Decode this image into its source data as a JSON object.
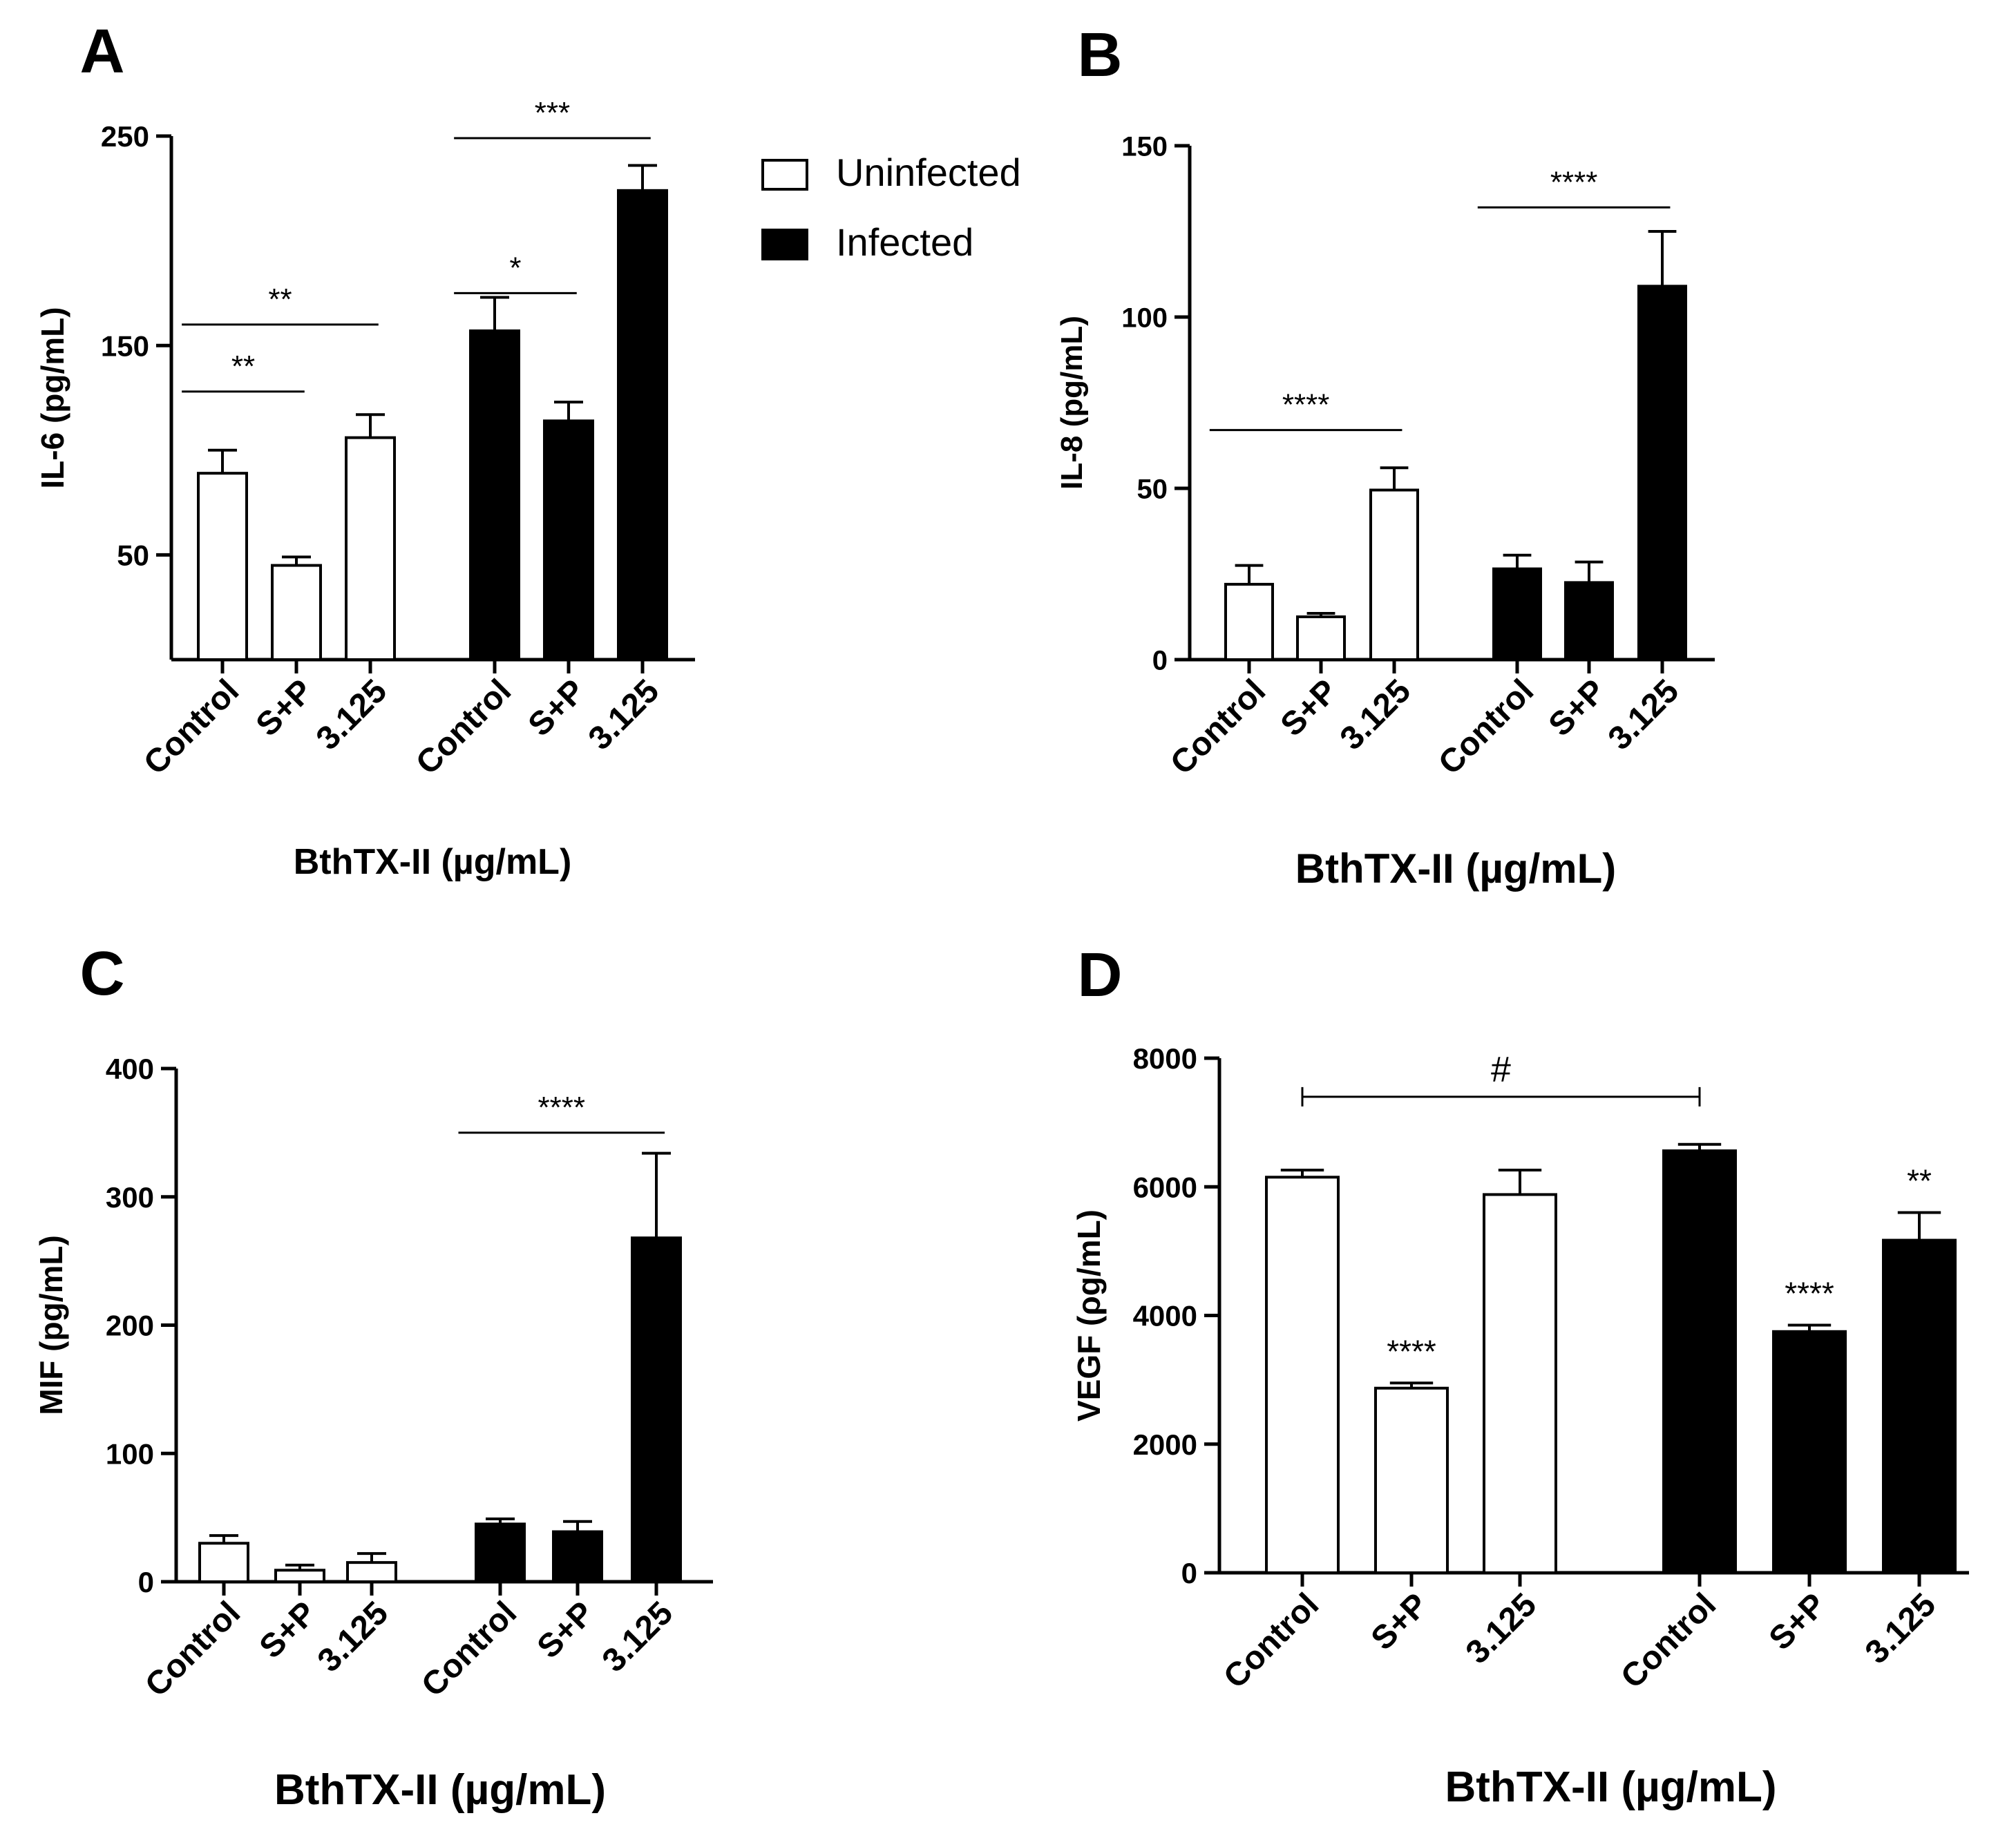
{
  "legend": {
    "position": "top-right of panel A",
    "entries": [
      {
        "label": "Uninfected",
        "fill": "#ffffff"
      },
      {
        "label": "Infected",
        "fill": "#000000"
      }
    ]
  },
  "chart_data": [
    {
      "panel": "A",
      "type": "bar",
      "categories": [
        "Control",
        "S+P",
        "3.125",
        "Control",
        "S+P",
        "3.125"
      ],
      "groups": [
        "Uninfected",
        "Uninfected",
        "Uninfected",
        "Infected",
        "Infected",
        "Infected"
      ],
      "values": [
        89,
        45,
        106,
        157,
        114,
        224
      ],
      "errors": [
        11,
        4,
        11,
        16,
        9,
        12
      ],
      "ylabel": "IL-6 (pg/mL)",
      "xlabel": "BthTX-II (µg/mL)",
      "ylim": [
        0,
        250
      ],
      "axis_start": 0,
      "yticks": [
        50,
        150,
        250
      ],
      "significance": [
        {
          "from": 0,
          "to": 1,
          "label": "**",
          "at": 128
        },
        {
          "from": 0,
          "to": 2,
          "label": "**",
          "at": 160
        },
        {
          "from": 3,
          "to": 4,
          "label": "*",
          "at": 175
        },
        {
          "from": 3,
          "to": 5,
          "label": "***",
          "at": 249
        }
      ]
    },
    {
      "panel": "B",
      "type": "bar",
      "categories": [
        "Control",
        "S+P",
        "3.125",
        "Control",
        "S+P",
        "3.125"
      ],
      "groups": [
        "Uninfected",
        "Uninfected",
        "Uninfected",
        "Infected",
        "Infected",
        "Infected"
      ],
      "values": [
        22,
        12.5,
        49.5,
        26.5,
        22.5,
        109
      ],
      "errors": [
        5.5,
        1,
        6.5,
        4,
        6,
        16
      ],
      "ylabel": "IL-8 (pg/mL)",
      "xlabel": "BthTX-II (µg/mL)",
      "ylim": [
        0,
        150
      ],
      "yticks": [
        0,
        50,
        100,
        150
      ],
      "significance": [
        {
          "from": 0,
          "to": 2,
          "label": "****",
          "at": 67
        },
        {
          "from": 3,
          "to": 5,
          "label": "****",
          "at": 132
        }
      ]
    },
    {
      "panel": "C",
      "type": "bar",
      "categories": [
        "Control",
        "S+P",
        "3.125",
        "Control",
        "S+P",
        "3.125"
      ],
      "groups": [
        "Uninfected",
        "Uninfected",
        "Uninfected",
        "Infected",
        "Infected",
        "Infected"
      ],
      "values": [
        30,
        9,
        15,
        45,
        39,
        268
      ],
      "errors": [
        6,
        4,
        7,
        4,
        8,
        66
      ],
      "ylabel": "MIF (pg/mL)",
      "xlabel": "BthTX-II (µg/mL)",
      "ylim": [
        0,
        400
      ],
      "yticks": [
        0,
        100,
        200,
        300,
        400
      ],
      "significance": [
        {
          "from": 3,
          "to": 5,
          "label": "****",
          "at": 350
        }
      ]
    },
    {
      "panel": "D",
      "type": "bar",
      "categories": [
        "Control",
        "S+P",
        "3.125",
        "Control",
        "S+P",
        "3.125"
      ],
      "groups": [
        "Uninfected",
        "Uninfected",
        "Uninfected",
        "Infected",
        "Infected",
        "Infected"
      ],
      "values": [
        6150,
        2870,
        5880,
        6560,
        3750,
        5170
      ],
      "errors": [
        110,
        80,
        380,
        100,
        100,
        430
      ],
      "ylabel": "VEGF (ρg/mL)",
      "xlabel": "BthTX-II (µg/mL)",
      "ylim": [
        0,
        8000
      ],
      "yticks": [
        0,
        2000,
        4000,
        6000,
        8000
      ],
      "bar_labels": [
        "",
        "****",
        "",
        "",
        "****",
        "**"
      ],
      "significance": [
        {
          "from": 0,
          "to": 3,
          "label": "#",
          "at": 7400,
          "capped": true
        }
      ]
    }
  ]
}
